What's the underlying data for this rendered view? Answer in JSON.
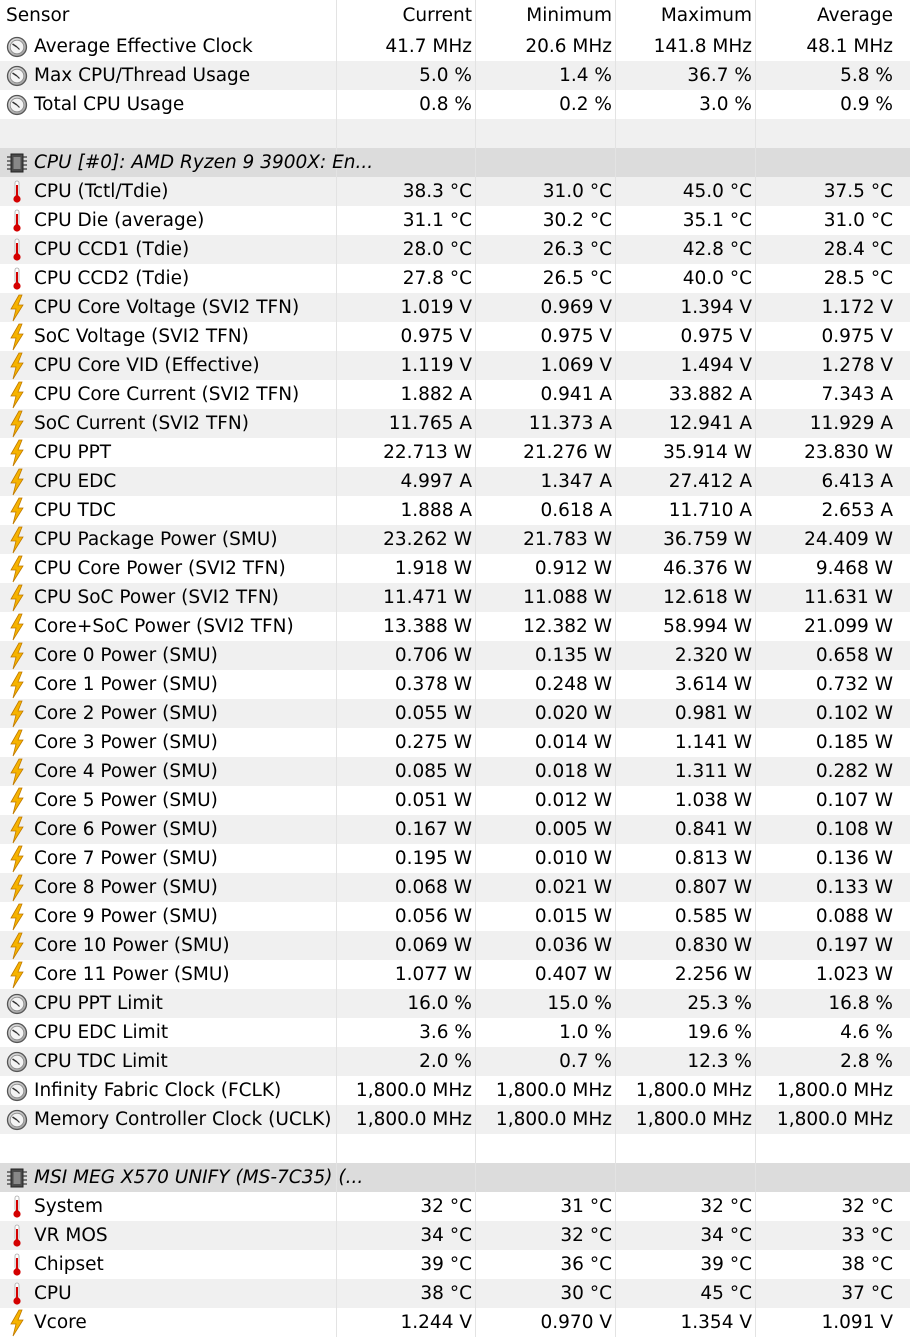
{
  "columns": [
    "Sensor",
    "Current",
    "Minimum",
    "Maximum",
    "Average"
  ],
  "rows": [
    {
      "type": "data",
      "icon": "clock-icon",
      "name": "Average Effective Clock",
      "cur": "41.7 MHz",
      "min": "20.6 MHz",
      "max": "141.8 MHz",
      "avg": "48.1 MHz"
    },
    {
      "type": "data",
      "icon": "clock-icon",
      "name": "Max CPU/Thread Usage",
      "cur": "5.0 %",
      "min": "1.4 %",
      "max": "36.7 %",
      "avg": "5.8 %"
    },
    {
      "type": "data",
      "icon": "clock-icon",
      "name": "Total CPU Usage",
      "cur": "0.8 %",
      "min": "0.2 %",
      "max": "3.0 %",
      "avg": "0.9 %"
    },
    {
      "type": "blank"
    },
    {
      "type": "group",
      "icon": "chip-icon",
      "name": "CPU [#0]: AMD Ryzen 9 3900X: En..."
    },
    {
      "type": "data",
      "icon": "thermometer-icon",
      "name": "CPU (Tctl/Tdie)",
      "cur": "38.3 °C",
      "min": "31.0 °C",
      "max": "45.0 °C",
      "avg": "37.5 °C"
    },
    {
      "type": "data",
      "icon": "thermometer-icon",
      "name": "CPU Die (average)",
      "cur": "31.1 °C",
      "min": "30.2 °C",
      "max": "35.1 °C",
      "avg": "31.0 °C"
    },
    {
      "type": "data",
      "icon": "thermometer-icon",
      "name": "CPU CCD1 (Tdie)",
      "cur": "28.0 °C",
      "min": "26.3 °C",
      "max": "42.8 °C",
      "avg": "28.4 °C"
    },
    {
      "type": "data",
      "icon": "thermometer-icon",
      "name": "CPU CCD2 (Tdie)",
      "cur": "27.8 °C",
      "min": "26.5 °C",
      "max": "40.0 °C",
      "avg": "28.5 °C"
    },
    {
      "type": "data",
      "icon": "lightning-icon",
      "name": "CPU Core Voltage (SVI2 TFN)",
      "cur": "1.019 V",
      "min": "0.969 V",
      "max": "1.394 V",
      "avg": "1.172 V"
    },
    {
      "type": "data",
      "icon": "lightning-icon",
      "name": "SoC Voltage (SVI2 TFN)",
      "cur": "0.975 V",
      "min": "0.975 V",
      "max": "0.975 V",
      "avg": "0.975 V"
    },
    {
      "type": "data",
      "icon": "lightning-icon",
      "name": "CPU Core VID (Effective)",
      "cur": "1.119 V",
      "min": "1.069 V",
      "max": "1.494 V",
      "avg": "1.278 V"
    },
    {
      "type": "data",
      "icon": "lightning-icon",
      "name": "CPU Core Current (SVI2 TFN)",
      "cur": "1.882 A",
      "min": "0.941 A",
      "max": "33.882 A",
      "avg": "7.343 A"
    },
    {
      "type": "data",
      "icon": "lightning-icon",
      "name": "SoC Current (SVI2 TFN)",
      "cur": "11.765 A",
      "min": "11.373 A",
      "max": "12.941 A",
      "avg": "11.929 A"
    },
    {
      "type": "data",
      "icon": "lightning-icon",
      "name": "CPU PPT",
      "cur": "22.713 W",
      "min": "21.276 W",
      "max": "35.914 W",
      "avg": "23.830 W"
    },
    {
      "type": "data",
      "icon": "lightning-icon",
      "name": "CPU EDC",
      "cur": "4.997 A",
      "min": "1.347 A",
      "max": "27.412 A",
      "avg": "6.413 A"
    },
    {
      "type": "data",
      "icon": "lightning-icon",
      "name": "CPU TDC",
      "cur": "1.888 A",
      "min": "0.618 A",
      "max": "11.710 A",
      "avg": "2.653 A"
    },
    {
      "type": "data",
      "icon": "lightning-icon",
      "name": "CPU Package Power (SMU)",
      "cur": "23.262 W",
      "min": "21.783 W",
      "max": "36.759 W",
      "avg": "24.409 W"
    },
    {
      "type": "data",
      "icon": "lightning-icon",
      "name": "CPU Core Power (SVI2 TFN)",
      "cur": "1.918 W",
      "min": "0.912 W",
      "max": "46.376 W",
      "avg": "9.468 W"
    },
    {
      "type": "data",
      "icon": "lightning-icon",
      "name": "CPU SoC Power (SVI2 TFN)",
      "cur": "11.471 W",
      "min": "11.088 W",
      "max": "12.618 W",
      "avg": "11.631 W"
    },
    {
      "type": "data",
      "icon": "lightning-icon",
      "name": "Core+SoC Power (SVI2 TFN)",
      "cur": "13.388 W",
      "min": "12.382 W",
      "max": "58.994 W",
      "avg": "21.099 W"
    },
    {
      "type": "data",
      "icon": "lightning-icon",
      "name": "Core 0 Power (SMU)",
      "cur": "0.706 W",
      "min": "0.135 W",
      "max": "2.320 W",
      "avg": "0.658 W"
    },
    {
      "type": "data",
      "icon": "lightning-icon",
      "name": "Core 1 Power (SMU)",
      "cur": "0.378 W",
      "min": "0.248 W",
      "max": "3.614 W",
      "avg": "0.732 W"
    },
    {
      "type": "data",
      "icon": "lightning-icon",
      "name": "Core 2 Power (SMU)",
      "cur": "0.055 W",
      "min": "0.020 W",
      "max": "0.981 W",
      "avg": "0.102 W"
    },
    {
      "type": "data",
      "icon": "lightning-icon",
      "name": "Core 3 Power (SMU)",
      "cur": "0.275 W",
      "min": "0.014 W",
      "max": "1.141 W",
      "avg": "0.185 W"
    },
    {
      "type": "data",
      "icon": "lightning-icon",
      "name": "Core 4 Power (SMU)",
      "cur": "0.085 W",
      "min": "0.018 W",
      "max": "1.311 W",
      "avg": "0.282 W"
    },
    {
      "type": "data",
      "icon": "lightning-icon",
      "name": "Core 5 Power (SMU)",
      "cur": "0.051 W",
      "min": "0.012 W",
      "max": "1.038 W",
      "avg": "0.107 W"
    },
    {
      "type": "data",
      "icon": "lightning-icon",
      "name": "Core 6 Power (SMU)",
      "cur": "0.167 W",
      "min": "0.005 W",
      "max": "0.841 W",
      "avg": "0.108 W"
    },
    {
      "type": "data",
      "icon": "lightning-icon",
      "name": "Core 7 Power (SMU)",
      "cur": "0.195 W",
      "min": "0.010 W",
      "max": "0.813 W",
      "avg": "0.136 W"
    },
    {
      "type": "data",
      "icon": "lightning-icon",
      "name": "Core 8 Power (SMU)",
      "cur": "0.068 W",
      "min": "0.021 W",
      "max": "0.807 W",
      "avg": "0.133 W"
    },
    {
      "type": "data",
      "icon": "lightning-icon",
      "name": "Core 9 Power (SMU)",
      "cur": "0.056 W",
      "min": "0.015 W",
      "max": "0.585 W",
      "avg": "0.088 W"
    },
    {
      "type": "data",
      "icon": "lightning-icon",
      "name": "Core 10 Power (SMU)",
      "cur": "0.069 W",
      "min": "0.036 W",
      "max": "0.830 W",
      "avg": "0.197 W"
    },
    {
      "type": "data",
      "icon": "lightning-icon",
      "name": "Core 11 Power (SMU)",
      "cur": "1.077 W",
      "min": "0.407 W",
      "max": "2.256 W",
      "avg": "1.023 W"
    },
    {
      "type": "data",
      "icon": "clock-icon",
      "name": "CPU PPT Limit",
      "cur": "16.0 %",
      "min": "15.0 %",
      "max": "25.3 %",
      "avg": "16.8 %"
    },
    {
      "type": "data",
      "icon": "clock-icon",
      "name": "CPU EDC Limit",
      "cur": "3.6 %",
      "min": "1.0 %",
      "max": "19.6 %",
      "avg": "4.6 %"
    },
    {
      "type": "data",
      "icon": "clock-icon",
      "name": "CPU TDC Limit",
      "cur": "2.0 %",
      "min": "0.7 %",
      "max": "12.3 %",
      "avg": "2.8 %"
    },
    {
      "type": "data",
      "icon": "clock-icon",
      "name": "Infinity Fabric Clock (FCLK)",
      "cur": "1,800.0 MHz",
      "min": "1,800.0 MHz",
      "max": "1,800.0 MHz",
      "avg": "1,800.0 MHz"
    },
    {
      "type": "data",
      "icon": "clock-icon",
      "name": "Memory Controller Clock (UCLK)",
      "cur": "1,800.0 MHz",
      "min": "1,800.0 MHz",
      "max": "1,800.0 MHz",
      "avg": "1,800.0 MHz"
    },
    {
      "type": "blank"
    },
    {
      "type": "group",
      "icon": "chip-icon",
      "name": "MSI MEG X570 UNIFY (MS-7C35) (..."
    },
    {
      "type": "data",
      "icon": "thermometer-icon",
      "name": "System",
      "cur": "32 °C",
      "min": "31 °C",
      "max": "32 °C",
      "avg": "32 °C"
    },
    {
      "type": "data",
      "icon": "thermometer-icon",
      "name": "VR MOS",
      "cur": "34 °C",
      "min": "32 °C",
      "max": "34 °C",
      "avg": "33 °C"
    },
    {
      "type": "data",
      "icon": "thermometer-icon",
      "name": "Chipset",
      "cur": "39 °C",
      "min": "36 °C",
      "max": "39 °C",
      "avg": "38 °C"
    },
    {
      "type": "data",
      "icon": "thermometer-icon",
      "name": "CPU",
      "cur": "38 °C",
      "min": "30 °C",
      "max": "45 °C",
      "avg": "37 °C"
    },
    {
      "type": "data",
      "icon": "lightning-icon",
      "name": "Vcore",
      "cur": "1.244 V",
      "min": "0.970 V",
      "max": "1.354 V",
      "avg": "1.091 V"
    }
  ]
}
